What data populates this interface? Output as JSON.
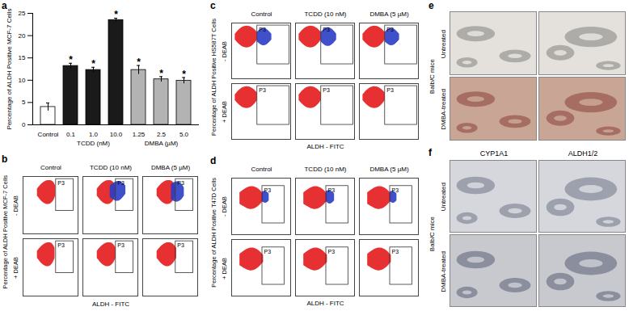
{
  "chart_data": [
    {
      "type": "bar",
      "panel_label": "a",
      "ylabel": "Percentage of ALDH Positive MCF-7 Cells",
      "categories": [
        "Control",
        "0.1",
        "1.0",
        "10.0",
        "1.25",
        "2.5",
        "5.0"
      ],
      "values": [
        4.0,
        13.2,
        12.3,
        23.5,
        12.3,
        10.2,
        9.9
      ],
      "errors": [
        0.9,
        0.6,
        0.6,
        0.4,
        1.0,
        0.6,
        0.7
      ],
      "colors": [
        "#ffffff",
        "#1a1a1a",
        "#1a1a1a",
        "#1a1a1a",
        "#b3b3b3",
        "#b3b3b3",
        "#b3b3b3"
      ],
      "ylim": [
        0,
        25
      ],
      "yticks": [
        0,
        5,
        10,
        15,
        20,
        25
      ],
      "groups": [
        {
          "label": "TCDD (nM)",
          "categories": [
            "0.1",
            "1.0",
            "10.0"
          ]
        },
        {
          "label": "DMBA (µM)",
          "categories": [
            "1.25",
            "2.5",
            "5.0"
          ]
        }
      ],
      "annotations": [
        {
          "text": "*",
          "categories": [
            "0.1",
            "1.0",
            "10.0",
            "1.25",
            "2.5",
            "5.0"
          ]
        }
      ]
    },
    {
      "type": "flow_cytometry",
      "panel_label": "b",
      "ylabel": "Percentage of ALDH Positive MCF-7 Cells",
      "xlabel": "ALDH - FITC",
      "log": true,
      "tick_labels": false,
      "xlim": [
        1,
        100000
      ],
      "ylim": [
        1,
        100000
      ],
      "columns": [
        "Control",
        "TCDD (10 nM)",
        "DMBA (5 µM)"
      ],
      "rows": [
        "- DEAB",
        "+ DEAB"
      ],
      "gate": {
        "label": "P3",
        "x": [
          1000,
          40000
        ],
        "y": [
          100,
          60000
        ]
      },
      "plots": [
        [
          {
            "populations": [
              {
                "color": "#e41a1c",
                "x": [
                  20,
                  60,
                  200,
                  600,
                  900
                ],
                "y1": [
                  2000,
                  500,
                  300,
                  600,
                  2000
                ],
                "y2": [
                  8000,
                  30000,
                  50000,
                  40000,
                  15000
                ]
              }
            ]
          },
          {
            "populations": [
              {
                "color": "#e41a1c",
                "x": [
                  20,
                  60,
                  200,
                  600,
                  900
                ],
                "y1": [
                  2000,
                  500,
                  300,
                  600,
                  2000
                ],
                "y2": [
                  8000,
                  30000,
                  50000,
                  40000,
                  15000
                ]
              },
              {
                "color": "#2b3cc4",
                "x": [
                  300,
                  1000,
                  3000,
                  8000
                ],
                "y1": [
                  1500,
                  600,
                  800,
                  3000
                ],
                "y2": [
                  15000,
                  40000,
                  40000,
                  15000
                ]
              }
            ]
          },
          {
            "populations": [
              {
                "color": "#e41a1c",
                "x": [
                  20,
                  60,
                  200,
                  600,
                  900
                ],
                "y1": [
                  2000,
                  500,
                  300,
                  600,
                  2000
                ],
                "y2": [
                  8000,
                  30000,
                  50000,
                  40000,
                  15000
                ]
              },
              {
                "color": "#2b3cc4",
                "x": [
                  400,
                  1000,
                  3000,
                  6000
                ],
                "y1": [
                  1000,
                  500,
                  700,
                  2000
                ],
                "y2": [
                  20000,
                  40000,
                  30000,
                  10000
                ]
              }
            ]
          }
        ],
        [
          {
            "populations": [
              {
                "color": "#e41a1c",
                "x": [
                  20,
                  60,
                  200,
                  500,
                  800
                ],
                "y1": [
                  2000,
                  500,
                  300,
                  600,
                  2000
                ],
                "y2": [
                  8000,
                  30000,
                  50000,
                  40000,
                  15000
                ]
              }
            ]
          },
          {
            "populations": [
              {
                "color": "#e41a1c",
                "x": [
                  20,
                  60,
                  200,
                  600,
                  1000
                ],
                "y1": [
                  2000,
                  500,
                  300,
                  600,
                  2000
                ],
                "y2": [
                  8000,
                  30000,
                  50000,
                  40000,
                  15000
                ]
              }
            ]
          },
          {
            "populations": [
              {
                "color": "#e41a1c",
                "x": [
                  20,
                  60,
                  200,
                  600,
                  1200
                ],
                "y1": [
                  2000,
                  500,
                  300,
                  600,
                  2000
                ],
                "y2": [
                  8000,
                  30000,
                  50000,
                  40000,
                  15000
                ]
              }
            ]
          }
        ]
      ]
    },
    {
      "type": "flow_cytometry",
      "panel_label": "c",
      "ylabel": "Percentage of ALDH Positive HS587T Cells",
      "xlabel": "ALDH - FITC",
      "log": true,
      "tick_labels": false,
      "xlim": [
        1,
        100000
      ],
      "ylim": [
        1,
        100000
      ],
      "columns": [
        "Control",
        "TCDD (10 nM)",
        "DMBA (5 µM)"
      ],
      "rows": [
        "- DEAB",
        "+ DEAB"
      ],
      "gate": {
        "label": "P3",
        "x": [
          150,
          80000
        ],
        "y": [
          20,
          60000
        ]
      },
      "plots": [
        [
          {
            "populations": [
              {
                "color": "#e41a1c",
                "x": [
                  2,
                  6,
                  20,
                  60,
                  150
                ],
                "y1": [
                  3000,
                  800,
                  500,
                  800,
                  3000
                ],
                "y2": [
                  10000,
                  40000,
                  60000,
                  40000,
                  15000
                ]
              },
              {
                "color": "#2b3cc4",
                "x": [
                  150,
                  400,
                  1000,
                  2500
                ],
                "y1": [
                  2000,
                  800,
                  1000,
                  3000
                ],
                "y2": [
                  15000,
                  40000,
                  30000,
                  10000
                ]
              }
            ]
          },
          {
            "populations": [
              {
                "color": "#e41a1c",
                "x": [
                  2,
                  6,
                  20,
                  60,
                  150
                ],
                "y1": [
                  3000,
                  800,
                  500,
                  800,
                  3000
                ],
                "y2": [
                  10000,
                  40000,
                  60000,
                  40000,
                  15000
                ]
              },
              {
                "color": "#2b3cc4",
                "x": [
                  150,
                  400,
                  1200,
                  3000
                ],
                "y1": [
                  2000,
                  700,
                  900,
                  3000
                ],
                "y2": [
                  15000,
                  45000,
                  35000,
                  10000
                ]
              }
            ]
          },
          {
            "populations": [
              {
                "color": "#e41a1c",
                "x": [
                  2,
                  6,
                  20,
                  60,
                  150
                ],
                "y1": [
                  3000,
                  800,
                  500,
                  800,
                  3000
                ],
                "y2": [
                  10000,
                  40000,
                  60000,
                  40000,
                  15000
                ]
              },
              {
                "color": "#2b3cc4",
                "x": [
                  150,
                  400,
                  1000,
                  2500
                ],
                "y1": [
                  2000,
                  800,
                  1000,
                  3000
                ],
                "y2": [
                  15000,
                  40000,
                  30000,
                  10000
                ]
              }
            ]
          }
        ],
        [
          {
            "populations": [
              {
                "color": "#e41a1c",
                "x": [
                  2,
                  6,
                  20,
                  60,
                  150
                ],
                "y1": [
                  3000,
                  800,
                  500,
                  800,
                  3000
                ],
                "y2": [
                  10000,
                  40000,
                  60000,
                  40000,
                  15000
                ]
              }
            ]
          },
          {
            "populations": [
              {
                "color": "#e41a1c",
                "x": [
                  2,
                  6,
                  20,
                  60,
                  150
                ],
                "y1": [
                  3000,
                  800,
                  500,
                  800,
                  3000
                ],
                "y2": [
                  10000,
                  40000,
                  60000,
                  40000,
                  15000
                ]
              }
            ]
          },
          {
            "populations": [
              {
                "color": "#e41a1c",
                "x": [
                  2,
                  6,
                  20,
                  60,
                  150
                ],
                "y1": [
                  3000,
                  800,
                  500,
                  800,
                  3000
                ],
                "y2": [
                  10000,
                  40000,
                  60000,
                  40000,
                  15000
                ]
              }
            ]
          }
        ]
      ]
    },
    {
      "type": "flow_cytometry",
      "panel_label": "d",
      "ylabel": "Percentage of ALDH Positive T47D Cells",
      "xlabel": "ALDH - FITC",
      "log": true,
      "tick_labels": false,
      "xlim": [
        1,
        100000
      ],
      "ylim": [
        1,
        100000
      ],
      "columns": [
        "Control",
        "TCDD (10 nM)",
        "DMBA (5 µM)"
      ],
      "rows": [
        "- DEAB",
        "+ DEAB"
      ],
      "gate": {
        "label": "P3",
        "x": [
          400,
          30000
        ],
        "y": [
          10,
          20000
        ]
      },
      "plots": [
        [
          {
            "populations": [
              {
                "color": "#e41a1c",
                "x": [
                  5,
                  20,
                  60,
                  200,
                  500
                ],
                "y1": [
                  500,
                  200,
                  150,
                  300,
                  1000
                ],
                "y2": [
                  5000,
                  15000,
                  20000,
                  12000,
                  4000
                ]
              },
              {
                "color": "#2b3cc4",
                "x": [
                  400,
                  800,
                  1500
                ],
                "y1": [
                  800,
                  500,
                  1000
                ],
                "y2": [
                  6000,
                  8000,
                  4000
                ]
              }
            ]
          },
          {
            "populations": [
              {
                "color": "#e41a1c",
                "x": [
                  5,
                  20,
                  60,
                  200,
                  500
                ],
                "y1": [
                  500,
                  200,
                  150,
                  300,
                  1000
                ],
                "y2": [
                  5000,
                  15000,
                  20000,
                  12000,
                  4000
                ]
              },
              {
                "color": "#2b3cc4",
                "x": [
                  400,
                  900,
                  2000
                ],
                "y1": [
                  800,
                  400,
                  1000
                ],
                "y2": [
                  7000,
                  9000,
                  4000
                ]
              }
            ]
          },
          {
            "populations": [
              {
                "color": "#e41a1c",
                "x": [
                  5,
                  20,
                  60,
                  200,
                  500
                ],
                "y1": [
                  500,
                  200,
                  150,
                  300,
                  1000
                ],
                "y2": [
                  5000,
                  15000,
                  20000,
                  12000,
                  4000
                ]
              },
              {
                "color": "#2b3cc4",
                "x": [
                  400,
                  800,
                  1500
                ],
                "y1": [
                  800,
                  500,
                  1000
                ],
                "y2": [
                  6000,
                  8000,
                  4000
                ]
              }
            ]
          }
        ],
        [
          {
            "populations": [
              {
                "color": "#e41a1c",
                "x": [
                  5,
                  20,
                  60,
                  200,
                  500
                ],
                "y1": [
                  500,
                  200,
                  150,
                  300,
                  1000
                ],
                "y2": [
                  5000,
                  15000,
                  20000,
                  12000,
                  4000
                ]
              }
            ]
          },
          {
            "populations": [
              {
                "color": "#e41a1c",
                "x": [
                  5,
                  20,
                  60,
                  200,
                  500
                ],
                "y1": [
                  500,
                  200,
                  150,
                  300,
                  1000
                ],
                "y2": [
                  5000,
                  15000,
                  20000,
                  12000,
                  4000
                ]
              }
            ]
          },
          {
            "populations": [
              {
                "color": "#e41a1c",
                "x": [
                  5,
                  20,
                  60,
                  200,
                  500
                ],
                "y1": [
                  500,
                  200,
                  150,
                  300,
                  1000
                ],
                "y2": [
                  5000,
                  15000,
                  20000,
                  12000,
                  4000
                ]
              }
            ]
          }
        ]
      ]
    }
  ],
  "images": [
    {
      "type": "image_grid",
      "panel_label": "e",
      "group_label": "Balb/C mice",
      "rows": [
        "Untreated",
        "DMBA-treated"
      ],
      "columns": []
    },
    {
      "type": "image_grid",
      "panel_label": "f",
      "group_label": "Balb/C mice",
      "rows": [
        "Untreated",
        "DMBA-treated"
      ],
      "columns": [
        "CYP1A1",
        "ALDH1/2"
      ]
    }
  ]
}
